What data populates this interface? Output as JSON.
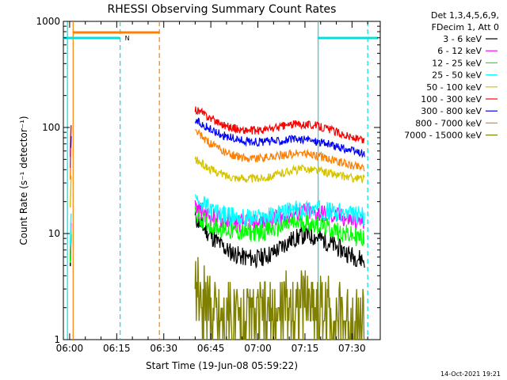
{
  "chart_data": {
    "type": "line",
    "title": "RHESSI Observing Summary Count Rates",
    "xlabel": "Start Time (19-Jun-08 05:59:22)",
    "ylabel": "Count Rate (s⁻¹ detector⁻¹)",
    "yscale": "log",
    "ylim": [
      1,
      1000
    ],
    "xlim": [
      "05:58",
      "07:39"
    ],
    "x_ticks": [
      "06:00",
      "06:15",
      "06:30",
      "06:45",
      "07:00",
      "07:15",
      "07:30"
    ],
    "y_ticks": [
      "1",
      "10",
      "100",
      "1000"
    ],
    "legend_header": [
      "Det 1,3,4,5,6,9,",
      "FDecim 1, Att 0"
    ],
    "legend_position": "right",
    "series": [
      {
        "name": "3 - 6 keV",
        "color": "#000000",
        "x": [
          "06:40",
          "06:45",
          "06:50",
          "06:55",
          "07:00",
          "07:05",
          "07:10",
          "07:15",
          "07:20",
          "07:25",
          "07:30",
          "07:34"
        ],
        "values": [
          14,
          9.5,
          7.0,
          6.0,
          5.8,
          6.6,
          8.5,
          9.8,
          9.0,
          7.5,
          6.2,
          5.6
        ]
      },
      {
        "name": "6 - 12 keV",
        "color": "#ff00ff",
        "x": [
          "06:40",
          "06:45",
          "06:50",
          "06:55",
          "07:00",
          "07:05",
          "07:10",
          "07:15",
          "07:20",
          "07:25",
          "07:30",
          "07:34"
        ],
        "values": [
          18,
          14.5,
          13.0,
          12.5,
          12.7,
          13.5,
          15.0,
          16.0,
          15.5,
          14.5,
          13.5,
          13.0
        ]
      },
      {
        "name": "12 - 25 keV",
        "color": "#00ff00",
        "x": [
          "06:40",
          "06:45",
          "06:50",
          "06:55",
          "07:00",
          "07:05",
          "07:10",
          "07:15",
          "07:20",
          "07:25",
          "07:30",
          "07:34"
        ],
        "values": [
          15,
          12.0,
          10.8,
          10.2,
          10.2,
          11.0,
          12.2,
          12.8,
          12.0,
          10.6,
          9.5,
          9.0
        ]
      },
      {
        "name": "25 - 50 keV",
        "color": "#00ffff",
        "x": [
          "06:40",
          "06:45",
          "06:50",
          "06:55",
          "07:00",
          "07:05",
          "07:10",
          "07:15",
          "07:20",
          "07:25",
          "07:30",
          "07:34"
        ],
        "values": [
          22,
          16.5,
          14.8,
          14.0,
          14.0,
          14.8,
          16.2,
          17.2,
          16.8,
          15.8,
          15.0,
          14.6
        ]
      },
      {
        "name": "50 - 100 keV",
        "color": "#d4c400",
        "x": [
          "06:40",
          "06:45",
          "06:50",
          "06:55",
          "07:00",
          "07:05",
          "07:10",
          "07:15",
          "07:20",
          "07:25",
          "07:30",
          "07:34"
        ],
        "values": [
          50,
          40,
          35,
          33,
          33,
          35,
          39,
          41,
          39,
          35.5,
          33.5,
          32.5
        ]
      },
      {
        "name": "100 - 300 keV",
        "color": "#ff0000",
        "x": [
          "06:40",
          "06:45",
          "06:50",
          "06:55",
          "07:00",
          "07:05",
          "07:10",
          "07:15",
          "07:20",
          "07:25",
          "07:30",
          "07:34"
        ],
        "values": [
          150,
          122,
          103,
          94,
          93,
          98,
          106,
          108,
          102,
          91,
          80,
          74
        ]
      },
      {
        "name": "300 - 800 keV",
        "color": "#0000ff",
        "x": [
          "06:40",
          "06:45",
          "06:50",
          "06:55",
          "07:00",
          "07:05",
          "07:10",
          "07:15",
          "07:20",
          "07:25",
          "07:30",
          "07:34"
        ],
        "values": [
          118,
          95,
          82,
          75,
          73,
          74,
          77,
          77,
          73,
          66,
          60,
          56
        ]
      },
      {
        "name": "800 - 7000 keV",
        "color": "#ff8000",
        "x": [
          "06:40",
          "06:45",
          "06:50",
          "06:55",
          "07:00",
          "07:05",
          "07:10",
          "07:15",
          "07:20",
          "07:25",
          "07:30",
          "07:34"
        ],
        "values": [
          92,
          70,
          57,
          52,
          51,
          53,
          56,
          57,
          53,
          48,
          44,
          42
        ]
      },
      {
        "name": "7000 - 15000 keV",
        "color": "#808000",
        "x": [
          "06:40",
          "06:45",
          "06:50",
          "06:55",
          "07:00",
          "07:05",
          "07:10",
          "07:15",
          "07:20",
          "07:25",
          "07:30",
          "07:34"
        ],
        "values": [
          3.0,
          2.0,
          1.6,
          1.5,
          1.5,
          1.6,
          2.1,
          2.2,
          2.0,
          1.7,
          1.5,
          1.5
        ]
      }
    ],
    "flags": [
      {
        "name": "N",
        "color": "#00e0e0"
      },
      {
        "name": "",
        "color": "#ff8000"
      }
    ],
    "footer_timestamp": "14-Oct-2021 19:21"
  }
}
